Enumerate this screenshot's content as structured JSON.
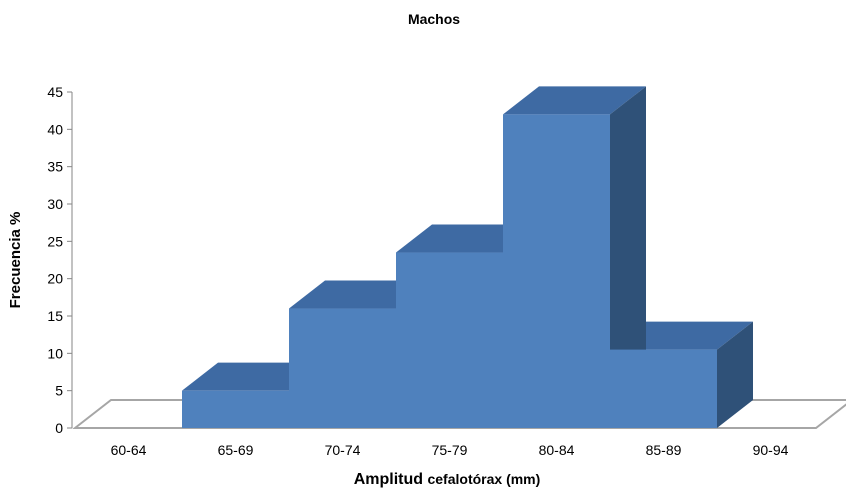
{
  "chart_data": {
    "type": "bar",
    "title": "Machos",
    "xlabel_main": "Amplitud",
    "xlabel_rest": "cefalotórax (mm)",
    "ylabel": "Frecuencia %",
    "categories": [
      "60-64",
      "65-69",
      "70-74",
      "75-79",
      "80-84",
      "85-89",
      "90-94"
    ],
    "series": [
      {
        "values": [
          0,
          5,
          16,
          23.5,
          42,
          10.5,
          0
        ]
      }
    ],
    "ylim": [
      0,
      45
    ],
    "yticks": [
      "0",
      "5",
      "10",
      "15",
      "20",
      "25",
      "30",
      "35",
      "40",
      "45"
    ],
    "bar_style": "3d-histogram",
    "grid": false,
    "legend": "none",
    "colors": {
      "front": "#4f81bd",
      "top": "#3e6aa3",
      "side": "#2f5178",
      "floor_stroke": "#a6a6a6"
    }
  }
}
